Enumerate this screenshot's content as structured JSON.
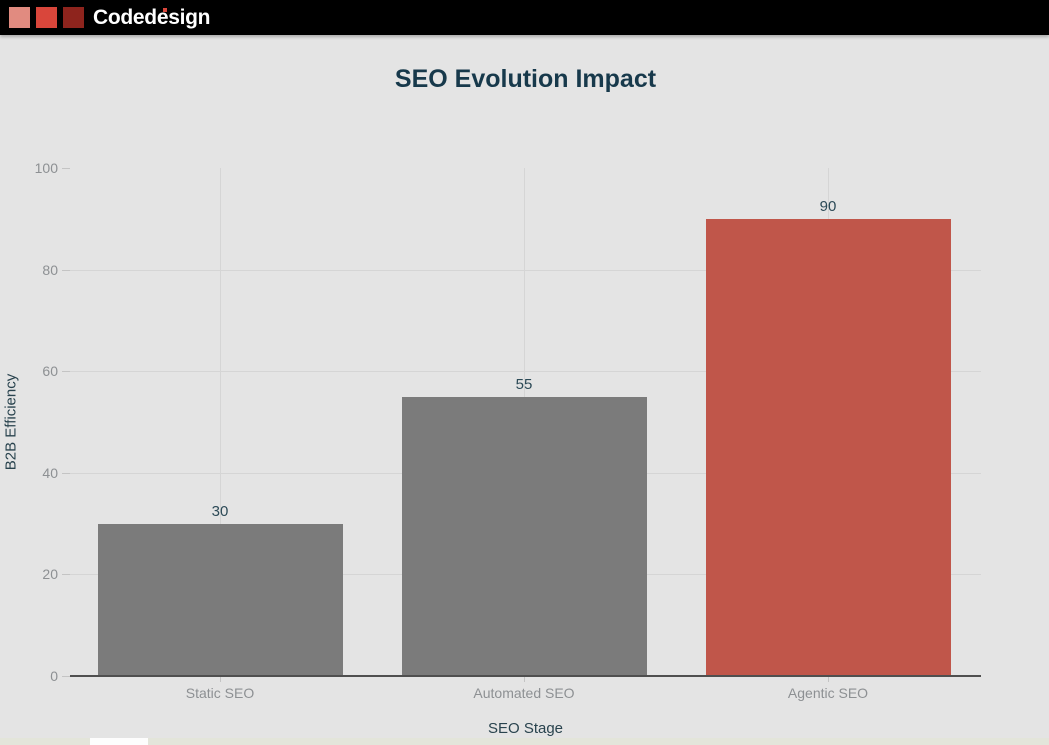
{
  "header": {
    "brand": "Codedesign",
    "logo_square_colors": [
      "#e18b80",
      "#d9463b",
      "#8e241d"
    ],
    "brand_i_dot_color": "#d9463b"
  },
  "chart_data": {
    "type": "bar",
    "title": "SEO Evolution Impact",
    "categories": [
      "Static SEO",
      "Automated SEO",
      "Agentic SEO"
    ],
    "values": [
      30,
      55,
      90
    ],
    "bar_colors": [
      "#7b7b7b",
      "#7b7b7b",
      "#c0564a"
    ],
    "xlabel": "SEO Stage",
    "ylabel": "B2B Efficiency",
    "ylim": [
      0,
      100
    ],
    "yticks": [
      0,
      20,
      40,
      60,
      80,
      100
    ],
    "grid": true,
    "legend": false
  },
  "colors": {
    "background": "#e4e4e4",
    "header_bg": "#000000",
    "title_text": "#17394b",
    "tick_text": "#8d9093",
    "axis_label_text": "#29434e",
    "gridline": "#d5d5d5",
    "axis_line": "#4f4f4f",
    "accent_bar": "#c0564a",
    "neutral_bar": "#7b7b7b"
  }
}
